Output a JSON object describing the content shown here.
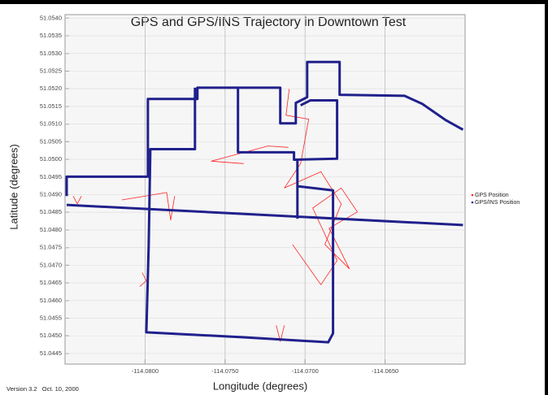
{
  "chart_data": {
    "type": "line",
    "title": "GPS and GPS/INS Trajectory in Downtown Test",
    "x_label": "Longitude (degrees)",
    "y_label": "Latitude (degrees)",
    "footer": "Version 3.2   Oct. 10, 2000",
    "xlim": [
      -114.085,
      -114.06
    ],
    "ylim": [
      51.0442,
      51.0541
    ],
    "xticks": [
      {
        "value": -114.08,
        "label": "-114.0800"
      },
      {
        "value": -114.075,
        "label": "-114.0750"
      },
      {
        "value": -114.07,
        "label": "-114.0700"
      },
      {
        "value": -114.065,
        "label": "-114.0650"
      }
    ],
    "yticks": [
      51.0445,
      {
        "value": 51.045,
        "label": "51.0450"
      },
      51.0455,
      {
        "value": 51.046,
        "label": "51.0460"
      },
      51.0465,
      {
        "value": 51.047,
        "label": "51.0470"
      },
      51.0475,
      {
        "value": 51.048,
        "label": "51.0480"
      },
      51.0485,
      {
        "value": 51.049,
        "label": "51.0490"
      },
      51.0495,
      {
        "value": 51.05,
        "label": "51.0500"
      },
      51.0505,
      {
        "value": 51.051,
        "label": "51.0510"
      },
      51.0515,
      {
        "value": 51.052,
        "label": "51.0520"
      },
      51.0525,
      {
        "value": 51.053,
        "label": "51.0530"
      },
      51.0535,
      {
        "value": 51.054,
        "label": "51.0540"
      }
    ],
    "grid": true,
    "legend": "right",
    "series": [
      {
        "name": "GPS Position",
        "color": "#ff2020",
        "x": [
          -114.08145,
          -114.07865,
          -114.0784,
          -114.07815,
          null,
          -114.07383,
          -114.07586,
          -114.07231,
          -114.07104,
          null,
          -114.07099,
          -114.07119,
          -114.06977,
          -114.07028,
          -114.07129,
          -114.06901,
          -114.06774,
          -114.06876,
          -114.06723,
          -114.0685,
          -114.06673,
          -114.06774,
          -114.06952,
          -114.068,
          -114.06901,
          -114.07079,
          null,
          -114.08449,
          -114.08424,
          -114.08398,
          null,
          -114.08018,
          -114.07992,
          -114.08033,
          null,
          -114.0718,
          -114.07155,
          -114.07129
        ],
        "values": [
          51.04885,
          51.04906,
          51.04828,
          51.04896,
          null,
          51.04988,
          51.04995,
          51.05038,
          51.05034,
          null,
          51.05199,
          51.05125,
          51.05114,
          51.04988,
          51.04919,
          51.04965,
          51.04874,
          51.04759,
          51.0469,
          51.04805,
          51.04851,
          51.04919,
          51.04862,
          51.04713,
          51.04645,
          51.04759,
          null,
          51.04896,
          51.04874,
          51.04896,
          null,
          51.04679,
          51.04656,
          51.0464,
          null,
          51.0453,
          51.04484,
          51.0453
        ]
      },
      {
        "name": "GPS/INS Position",
        "color": "#20208c",
        "x": [
          -114.0849,
          -114.06013,
          null,
          -114.0849,
          -114.0849,
          -114.07982,
          -114.07982,
          -114.07673,
          -114.07673,
          -114.07155,
          -114.07155,
          -114.07058,
          -114.07058,
          -114.06987,
          -114.06987,
          -114.06784,
          -114.06784,
          -114.06378,
          -114.06267,
          -114.06124,
          -114.06013,
          null,
          -114.07688,
          -114.07688,
          -114.07967,
          -114.07977,
          -114.07992,
          -114.07383,
          -114.06855,
          -114.06825,
          -114.06825,
          -114.07048,
          -114.07048,
          null,
          -114.07419,
          -114.07419,
          -114.07069,
          -114.07069,
          -114.068,
          -114.068,
          -114.06967,
          -114.07028,
          null,
          -114.07048,
          -114.07048
        ],
        "values": [
          51.04871,
          51.04814,
          null,
          51.04896,
          51.04951,
          51.04951,
          51.05171,
          51.05171,
          51.05203,
          51.05203,
          51.05102,
          51.05102,
          51.0516,
          51.05176,
          51.05276,
          51.05276,
          51.05183,
          51.0518,
          51.05157,
          51.05112,
          51.05084,
          null,
          51.05203,
          51.05029,
          51.05029,
          51.04759,
          51.0451,
          51.04496,
          51.04482,
          51.04507,
          51.04912,
          51.04924,
          51.04832,
          null,
          51.05203,
          51.0502,
          51.0502,
          51.04999,
          51.05002,
          51.05167,
          51.05167,
          51.05153,
          null,
          51.05002,
          51.04851
        ]
      }
    ]
  }
}
